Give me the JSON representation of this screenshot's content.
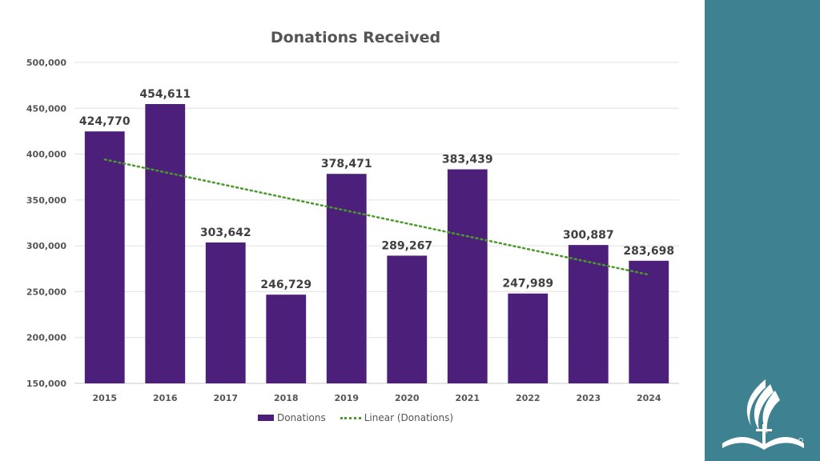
{
  "chart_data": {
    "type": "bar",
    "title": "Donations Received",
    "categories": [
      "2015",
      "2016",
      "2017",
      "2018",
      "2019",
      "2020",
      "2021",
      "2022",
      "2023",
      "2024"
    ],
    "series": [
      {
        "name": "Donations",
        "values": [
          424770,
          454611,
          303642,
          246729,
          378471,
          289267,
          383439,
          247989,
          300887,
          283698
        ]
      }
    ],
    "data_labels": [
      "424,770",
      "454,611",
      "303,642",
      "246,729",
      "378,471",
      "289,267",
      "383,439",
      "247,989",
      "300,887",
      "283,698"
    ],
    "trendline": {
      "name": "Linear (Donations)",
      "type": "linear",
      "style": "dotted"
    },
    "ylim": [
      150000,
      500000
    ],
    "ytick_labels": [
      "150,000",
      "200,000",
      "250,000",
      "300,000",
      "350,000",
      "400,000",
      "450,000",
      "500,000"
    ],
    "grid": true,
    "legend_position": "bottom",
    "colors": {
      "bar": "#4b1f7a",
      "trendline": "#4a9a2a",
      "panel": "#3e8190"
    }
  }
}
